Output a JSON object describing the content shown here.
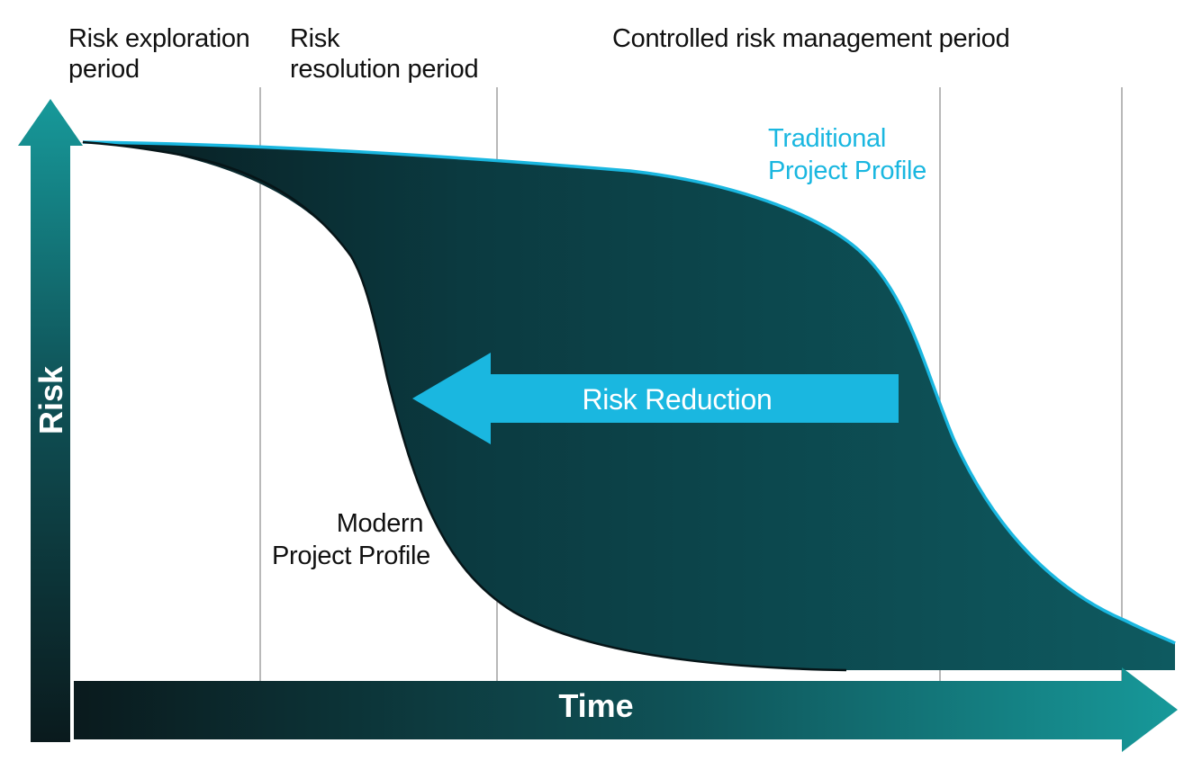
{
  "phases": [
    {
      "line1": "Risk exploration",
      "line2": "period"
    },
    {
      "line1": "Risk",
      "line2": "resolution period"
    },
    {
      "line1": "Controlled risk management period",
      "line2": ""
    }
  ],
  "profiles": {
    "traditional": {
      "line1": "Traditional",
      "line2": "Project Profile",
      "color": "#1ab7e0"
    },
    "modern": {
      "line1": "Modern",
      "line2": "Project Profile"
    }
  },
  "risk_reduction": {
    "label": "Risk Reduction",
    "color": "#1ab7e0"
  },
  "axes": {
    "y_label": "Risk",
    "x_label": "Time"
  },
  "colors": {
    "area_dark": "#0b2e33",
    "area_light": "#0e5a60",
    "axis_teal": "#17999a",
    "axis_dark": "#0a1a1d"
  }
}
